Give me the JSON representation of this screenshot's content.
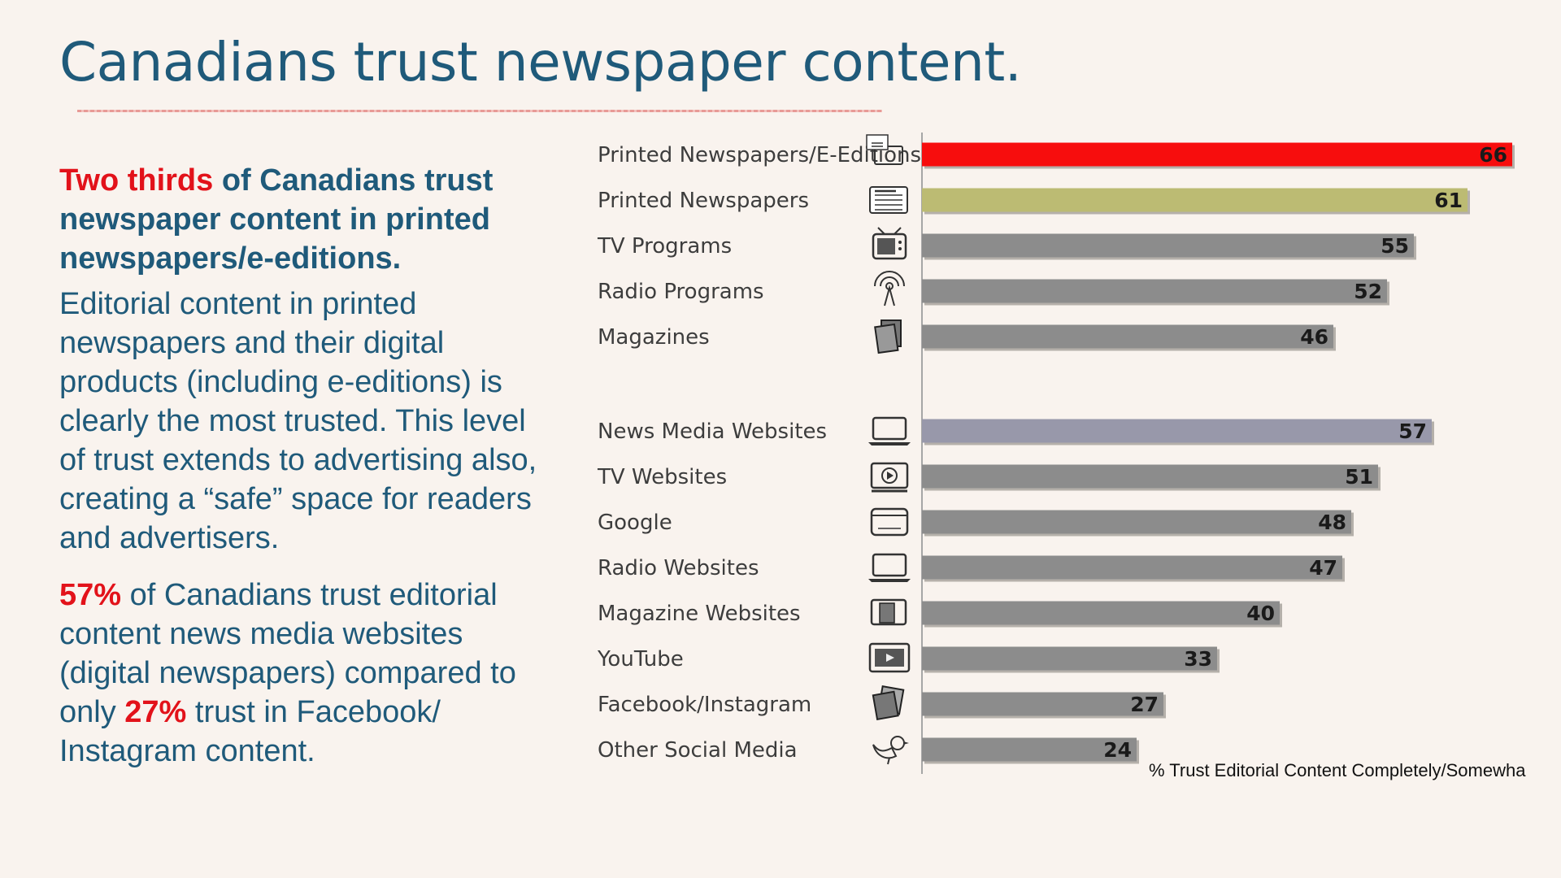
{
  "title": "Canadians trust newspaper content.",
  "left": {
    "lead_accent": "Two thirds",
    "lead_rest": " of Canadians trust newspaper content in printed newspapers/e-editions.",
    "paragraph1": "Editorial content in printed newspapers and their digital products (including e-editions) is clearly the most trusted.  This level of trust extends to advertising also, creating a “safe” space for readers and advertisers.",
    "p2_pct1": "57%",
    "p2_text1": " of Canadians trust editorial content news media websites (digital newspapers)  compared to only ",
    "p2_pct2": "27%",
    "p2_text2": " trust in Facebook/ Instagram content."
  },
  "chart_data": {
    "type": "bar",
    "orientation": "horizontal",
    "categories": [
      "Printed Newspapers/E-Editions",
      "Printed Newspapers",
      "TV Programs",
      "Radio Programs",
      "Magazines",
      "News Media Websites",
      "TV Websites",
      "Google",
      "Radio Websites",
      "Magazine Websites",
      "YouTube",
      "Facebook/Instagram",
      "Other Social Media"
    ],
    "values": [
      66,
      61,
      55,
      52,
      46,
      57,
      51,
      48,
      47,
      40,
      33,
      27,
      24
    ],
    "bar_colors": [
      "#f70d0d",
      "#bcbb73",
      "#8c8c8c",
      "#8c8c8c",
      "#8c8c8c",
      "#9898aa",
      "#8c8c8c",
      "#8c8c8c",
      "#8c8c8c",
      "#8c8c8c",
      "#8c8c8c",
      "#8c8c8c",
      "#8c8c8c"
    ],
    "icons": [
      "newspaper-laptop-icon",
      "newspaper-icon",
      "tv-icon",
      "radio-tower-icon",
      "magazines-icon",
      "laptop-icon",
      "video-screen-icon",
      "browser-window-icon",
      "laptop-icon",
      "magazine-tablet-icon",
      "youtube-screen-icon",
      "photos-icon",
      "bird-icon"
    ],
    "groups": [
      [
        0,
        4
      ],
      [
        5,
        12
      ]
    ],
    "xlim": [
      0,
      70
    ],
    "data_labels": [
      "66",
      "61",
      "55",
      "52",
      "46",
      "57",
      "51",
      "48",
      "47",
      "40",
      "33",
      "27",
      "24"
    ],
    "caption": "% Trust Editorial Content Completely/Somewha"
  }
}
